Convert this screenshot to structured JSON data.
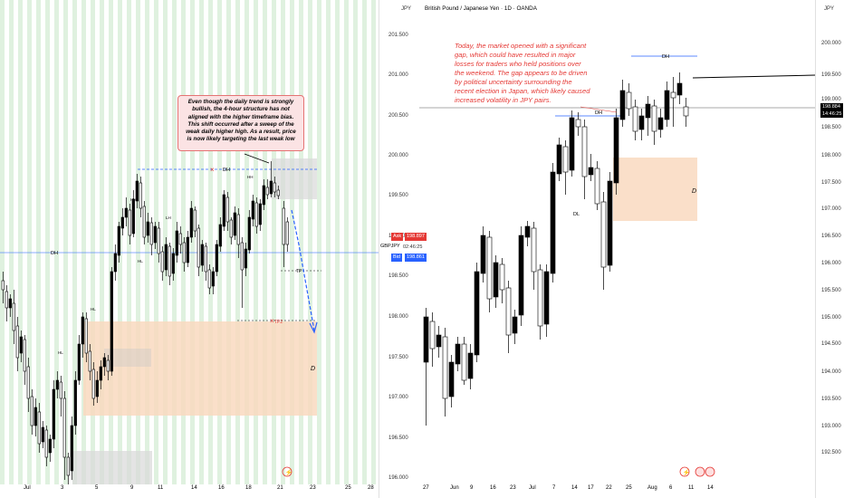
{
  "left_chart": {
    "annotation": "Even though the daily trend is strongly bullish, the 4-hour structure has not aligned with the higher timeframe bias. This shift occurred after a sweep of the weak daily higher high. As a result, price is now likely targeting the last weak low",
    "labels": {
      "dh": "DH",
      "dh2": "DH",
      "d": "D",
      "tp": "TP",
      "tp2": "TP2",
      "hl": "HL",
      "lh": "LH",
      "hh": "HH"
    },
    "x_ticks": [
      "Jul",
      "3",
      "5",
      "9",
      "11",
      "14",
      "16",
      "18",
      "21",
      "23",
      "25",
      "28"
    ],
    "colors": {
      "bull": "#000000",
      "bear": "#ffffff",
      "zone": "#f9d9bf",
      "stripe": "#dff1df",
      "gray_zone": "#d9d9d9",
      "dh_line": "#2962ff",
      "target": "#2962ff"
    }
  },
  "middle_axis": {
    "currency": "JPY",
    "ticks": [
      "201.500",
      "201.000",
      "200.500",
      "200.000",
      "199.500",
      "199.000",
      "198.500",
      "198.000",
      "197.500",
      "197.000",
      "196.500",
      "196.000"
    ],
    "symbol": "GBPJPY",
    "ask_label": "Ask",
    "ask_value": "198.897",
    "countdown": "02:46:25",
    "bid_label": "Bid",
    "bid_value": "198.861"
  },
  "right_chart": {
    "title": "British Pound / Japanese Yen · 1D · OANDA",
    "annotation": "Today, the market opened with a significant gap, which could have resulted in major losses for traders who held positions over the weekend. The gap appears to be driven by political uncertainty surrounding the recent election in Japan, which likely caused increased volatility in JPY pairs.",
    "labels": {
      "dh": "DH",
      "dh2": "DH",
      "dl": "DL",
      "d": "D"
    },
    "x_ticks": [
      "27",
      "Jun",
      "9",
      "16",
      "23",
      "Jul",
      "7",
      "14",
      "17",
      "22",
      "25",
      "Aug",
      "6",
      "11",
      "14"
    ],
    "colors": {
      "zone": "#f9d9bf"
    }
  },
  "right_axis": {
    "currency": "JPY",
    "ticks": [
      "200.000",
      "199.500",
      "199.000",
      "198.500",
      "198.000",
      "197.500",
      "197.000",
      "196.500",
      "196.000",
      "195.500",
      "195.000",
      "194.500",
      "194.000",
      "193.500",
      "193.000",
      "192.500"
    ],
    "price_value": "198.884",
    "countdown": "14:46:25"
  }
}
